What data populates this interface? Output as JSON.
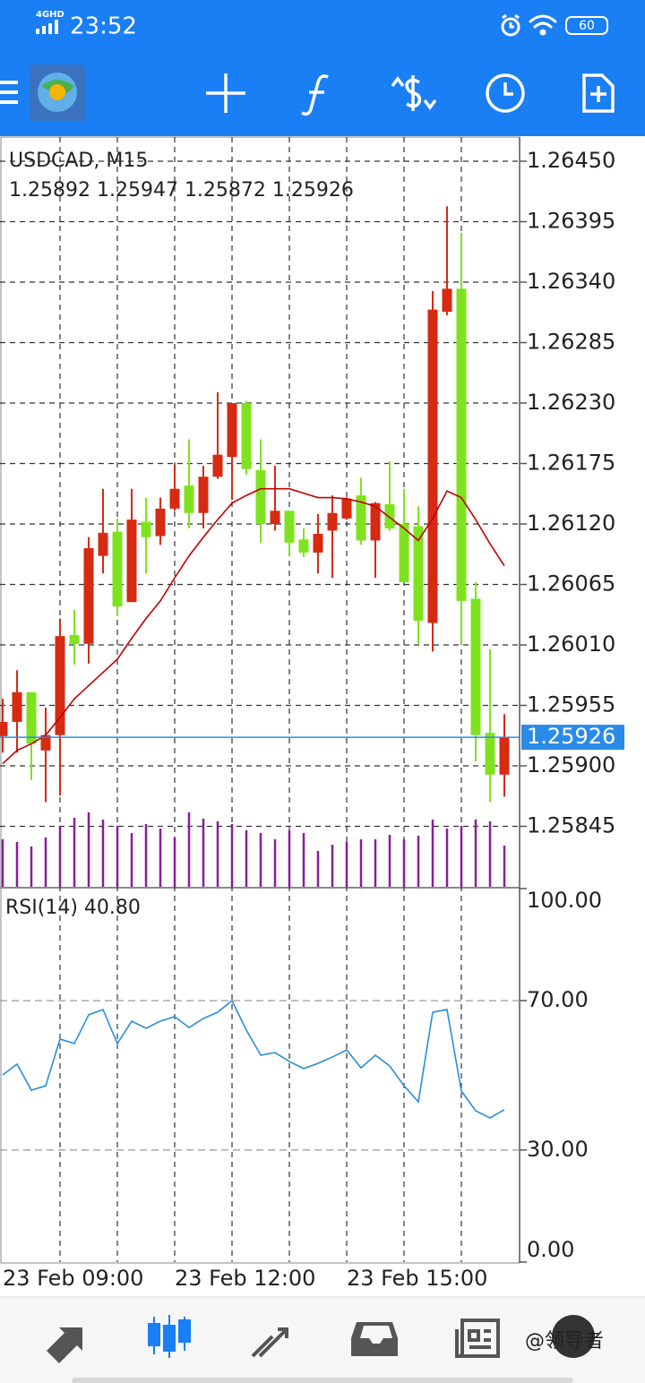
{
  "status_bar": {
    "network": "4GHD",
    "time": "23:52",
    "battery": "60"
  },
  "watermark": "@领导者",
  "chart_data": [
    {
      "type": "candlestick",
      "title": "USDCAD, M15",
      "subtitle": "1.25892 1.25947 1.25872 1.25926",
      "categories": [
        "23 Feb 09:00",
        null,
        null,
        null,
        null,
        null,
        null,
        null,
        null,
        null,
        null,
        null,
        "23 Feb 12:00",
        null,
        null,
        null,
        null,
        null,
        null,
        null,
        null,
        null,
        null,
        null,
        "23 Feb 15:00",
        null,
        null,
        null,
        null,
        null,
        null,
        null,
        null,
        null,
        null,
        null
      ],
      "open": [
        1.25927,
        1.2594,
        1.25967,
        1.25914,
        1.25928,
        1.26019,
        1.26011,
        1.26091,
        1.26113,
        1.26049,
        1.26122,
        1.26109,
        1.26134,
        1.26155,
        1.2613,
        1.26163,
        1.26181,
        1.2623,
        1.26169,
        1.2612,
        1.26132,
        1.26106,
        1.26094,
        1.26114,
        1.26125,
        1.26146,
        1.26105,
        1.26138,
        1.2612,
        1.26118,
        1.2603,
        1.26313,
        1.26334,
        1.26052,
        1.2593,
        1.25892
      ],
      "high": [
        1.25961,
        1.25987,
        1.25967,
        1.25953,
        1.26034,
        1.26042,
        1.26108,
        1.26152,
        1.26125,
        1.26152,
        1.26144,
        1.26144,
        1.26174,
        1.26197,
        1.26173,
        1.2624,
        1.2623,
        1.26232,
        1.26197,
        1.26173,
        1.26132,
        1.26116,
        1.26129,
        1.26146,
        1.26144,
        1.26162,
        1.2614,
        1.26177,
        1.26152,
        1.26136,
        1.26332,
        1.26409,
        1.26385,
        1.26067,
        1.26006,
        1.25947
      ],
      "low": [
        1.25912,
        1.25912,
        1.25887,
        1.25867,
        1.25873,
        1.25992,
        1.25993,
        1.26075,
        1.26036,
        1.26049,
        1.26075,
        1.26101,
        1.26132,
        1.26116,
        1.26116,
        1.26161,
        1.26142,
        1.26165,
        1.26103,
        1.26114,
        1.26091,
        1.2609,
        1.26075,
        1.26071,
        1.26124,
        1.26101,
        1.26071,
        1.26114,
        1.26067,
        1.26011,
        1.26004,
        1.2631,
        1.26011,
        1.25904,
        1.25867,
        1.25872
      ],
      "close": [
        1.2594,
        1.25967,
        1.2592,
        1.25928,
        1.26018,
        1.26011,
        1.26098,
        1.26112,
        1.26045,
        1.26124,
        1.26108,
        1.26134,
        1.26152,
        1.2613,
        1.26163,
        1.26183,
        1.2623,
        1.2617,
        1.2612,
        1.26132,
        1.26103,
        1.26094,
        1.26111,
        1.2613,
        1.26143,
        1.26105,
        1.26139,
        1.26116,
        1.26067,
        1.26032,
        1.26315,
        1.26334,
        1.2605,
        1.25928,
        1.25892,
        1.25926
      ],
      "up_color": "#d62a12",
      "down_color": "#7ee31e",
      "ma": {
        "color": "#c00000",
        "values": [
          1.25902,
          1.25914,
          1.2592,
          1.25928,
          1.25944,
          1.25961,
          1.25973,
          1.25985,
          1.25997,
          1.26016,
          1.26034,
          1.2605,
          1.26071,
          1.26091,
          1.26108,
          1.26124,
          1.26139,
          1.26146,
          1.26152,
          1.26152,
          1.26152,
          1.26148,
          1.26144,
          1.26144,
          1.26143,
          1.2614,
          1.26136,
          1.26126,
          1.26116,
          1.26105,
          1.26125,
          1.2615,
          1.26144,
          1.26124,
          1.26102,
          1.26082
        ]
      },
      "volume": {
        "color": "#8a1c9c",
        "values": [
          53,
          50,
          45,
          55,
          68,
          77,
          83,
          75,
          68,
          60,
          70,
          65,
          55,
          83,
          76,
          73,
          70,
          63,
          60,
          53,
          63,
          60,
          40,
          47,
          50,
          53,
          53,
          58,
          53,
          57,
          75,
          65,
          68,
          75,
          73,
          46
        ]
      },
      "current_price": 1.25926,
      "current_color": "#2a8be8",
      "ylim": [
        1.2579,
        1.26472
      ],
      "yticks": [
        {
          "value": 1.2645,
          "label": "1.26450"
        },
        1.26395,
        {
          "value": 1.2634,
          "label": "1.26340"
        },
        1.26285,
        {
          "value": 1.2623,
          "label": "1.26230"
        },
        1.26175,
        {
          "value": 1.2612,
          "label": "1.26120"
        },
        1.26065,
        {
          "value": 1.2601,
          "label": "1.26010"
        },
        1.25955,
        {
          "value": 1.259,
          "label": "1.25900"
        },
        1.25845
      ],
      "grid": true
    },
    {
      "type": "line",
      "title": "RSI(14) 40.80",
      "color": "#2a8fd6",
      "values": [
        50.1,
        53.0,
        46.0,
        47.2,
        59.7,
        58.5,
        66.2,
        67.6,
        58.5,
        64.5,
        62.6,
        64.5,
        65.7,
        62.8,
        65.2,
        66.9,
        70.0,
        62.1,
        55.4,
        56.1,
        53.7,
        51.8,
        53.2,
        54.9,
        56.8,
        52.0,
        55.4,
        52.5,
        47.2,
        42.9,
        66.9,
        67.6,
        45.8,
        40.5,
        38.6,
        40.8
      ],
      "ylim": [
        0,
        100
      ],
      "yticks": [
        {
          "value": 100,
          "label": "100.00"
        },
        {
          "value": 70,
          "label": "70.00"
        },
        {
          "value": 30,
          "label": "30.00"
        },
        {
          "value": 0,
          "label": "0.00"
        }
      ],
      "grid": true
    }
  ]
}
